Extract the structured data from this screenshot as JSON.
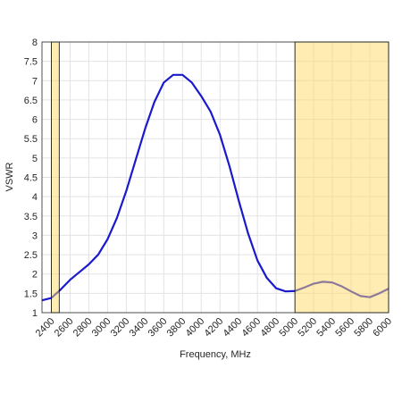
{
  "chart_data": {
    "type": "line",
    "xlabel": "Frequency, MHz",
    "ylabel": "VSWR",
    "x": [
      2300,
      2400,
      2500,
      2600,
      2700,
      2800,
      2900,
      3000,
      3100,
      3200,
      3300,
      3400,
      3500,
      3600,
      3700,
      3800,
      3900,
      4000,
      4100,
      4200,
      4300,
      4400,
      4500,
      4600,
      4700,
      4800,
      4900,
      5000,
      5100,
      5200,
      5300,
      5400,
      5500,
      5600,
      5700,
      5800,
      5900,
      6000
    ],
    "values": [
      1.32,
      1.38,
      1.6,
      1.85,
      2.05,
      2.25,
      2.5,
      2.9,
      3.45,
      4.15,
      4.95,
      5.75,
      6.45,
      6.95,
      7.15,
      7.15,
      6.95,
      6.6,
      6.2,
      5.6,
      4.8,
      3.9,
      3.05,
      2.35,
      1.9,
      1.63,
      1.55,
      1.56,
      1.65,
      1.75,
      1.8,
      1.78,
      1.68,
      1.55,
      1.43,
      1.4,
      1.5,
      1.62
    ],
    "color": "#1a1acd",
    "bands": [
      [
        2400,
        2484
      ],
      [
        5000,
        6000
      ]
    ],
    "band_color": "#ffd966",
    "xlim": [
      2300,
      6000
    ],
    "ylim": [
      1,
      8
    ],
    "xticks": [
      2400,
      2600,
      2800,
      3000,
      3200,
      3400,
      3600,
      3800,
      4000,
      4200,
      4400,
      4600,
      4800,
      5000,
      5200,
      5400,
      5600,
      5800,
      6000
    ],
    "yticks": [
      1,
      1.5,
      2,
      2.5,
      3,
      3.5,
      4,
      4.5,
      5,
      5.5,
      6,
      6.5,
      7,
      7.5,
      8
    ],
    "grid": true
  }
}
